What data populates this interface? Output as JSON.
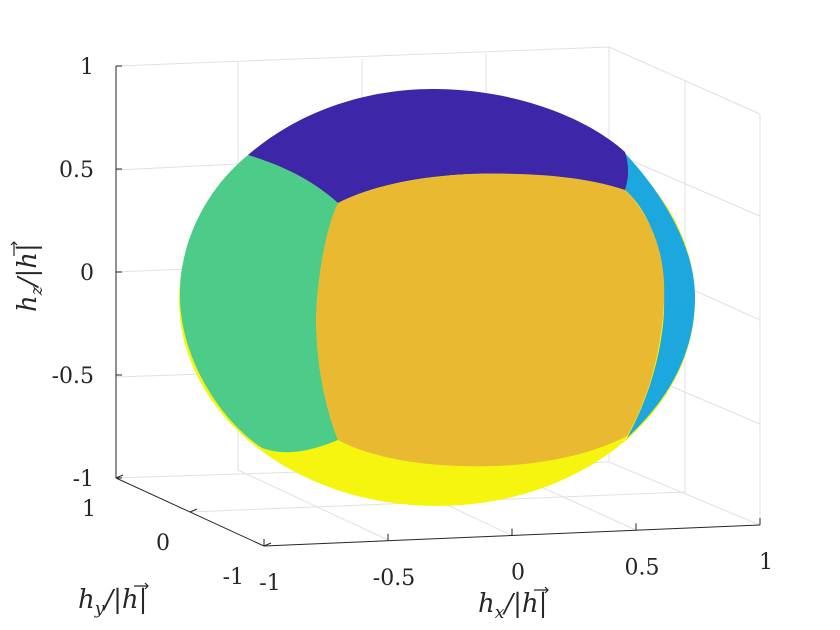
{
  "chart_data": {
    "type": "surface-3d",
    "description_free": true,
    "x": {
      "label": "h_x/|h|",
      "ticks": [
        -1,
        -0.5,
        0,
        0.5,
        1
      ],
      "tick_labels": [
        "-1",
        "-0.5",
        "0",
        "0.5",
        "1"
      ],
      "lim": [
        -1,
        1
      ]
    },
    "y": {
      "label": "h_y/|h|",
      "ticks": [
        -1,
        0,
        1
      ],
      "tick_labels": [
        "-1",
        "0",
        "1"
      ],
      "lim": [
        -1,
        1
      ]
    },
    "z": {
      "label": "h_z/|h|",
      "ticks": [
        -1,
        -0.5,
        0,
        0.5,
        1
      ],
      "tick_labels": [
        "-1",
        "-0.5",
        "0",
        "0.5",
        "1"
      ],
      "lim": [
        -1,
        1
      ]
    },
    "grid": true,
    "regions": [
      {
        "color": "#3e26a8"
      },
      {
        "color": "#4ccb89"
      },
      {
        "color": "#e9b931"
      },
      {
        "color": "#1ca8de"
      },
      {
        "color": "#f5f50f"
      }
    ]
  }
}
